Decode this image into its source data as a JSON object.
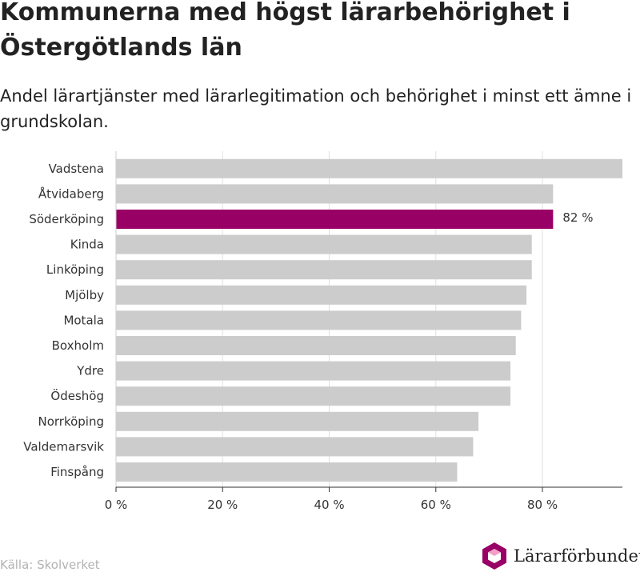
{
  "title": "Kommunerna med högst lärarbehörighet i Östergötlands län",
  "subtitle": "Andel lärartjänster med lärarlegitimation och behörighet i minst ett ämne i grundskolan.",
  "source": "Källa: Skolverket",
  "logo": {
    "text": "Lärarförbundet",
    "icon": "hexagon-logo-icon"
  },
  "colors": {
    "bar": "#cccccc",
    "highlight": "#990066",
    "grid": "#e0e0e0",
    "axis": "#333333"
  },
  "chart_data": {
    "type": "bar",
    "orientation": "horizontal",
    "categories": [
      "Vadstena",
      "Åtvidaberg",
      "Söderköping",
      "Kinda",
      "Linköping",
      "Mjölby",
      "Motala",
      "Boxholm",
      "Ydre",
      "Ödeshög",
      "Norrköping",
      "Valdemarsvik",
      "Finspång"
    ],
    "values": [
      95,
      82,
      82,
      78,
      78,
      77,
      76,
      75,
      74,
      74,
      68,
      67,
      64
    ],
    "highlight_index": 2,
    "data_labels": [
      {
        "index": 2,
        "text": "82 %"
      }
    ],
    "xlim": [
      0,
      95
    ],
    "ticks": [
      0,
      20,
      40,
      60,
      80
    ],
    "tick_labels": [
      "0 %",
      "20 %",
      "40 %",
      "60 %",
      "80 %"
    ],
    "grid": true,
    "legend": "none"
  }
}
